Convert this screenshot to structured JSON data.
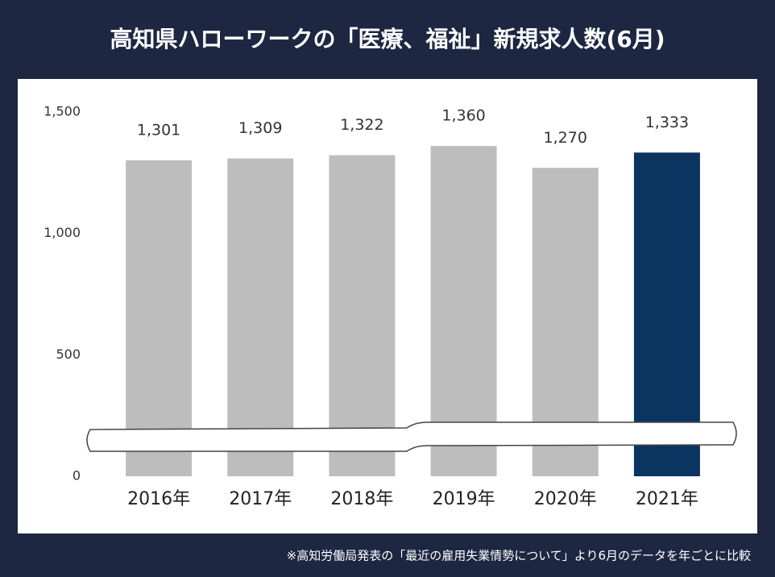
{
  "chart_data": {
    "type": "bar",
    "title": "高知県ハローワークの「医療、福祉」新規求人数(6月)",
    "categories": [
      "2016年",
      "2017年",
      "2018年",
      "2019年",
      "2020年",
      "2021年"
    ],
    "values": [
      1301,
      1309,
      1322,
      1360,
      1270,
      1333
    ],
    "value_labels": [
      "1,301",
      "1,309",
      "1,322",
      "1,360",
      "1,270",
      "1,333"
    ],
    "colors": [
      "#bdbdbd",
      "#bdbdbd",
      "#bdbdbd",
      "#bdbdbd",
      "#bdbdbd",
      "#0b3461"
    ],
    "ylim": [
      0,
      1500
    ],
    "yticks": [
      0,
      500,
      {
        "value": 1000,
        "label": "1,000"
      },
      {
        "value": 1500,
        "label": "1,500"
      }
    ],
    "footnote": "※高知労働局発表の「最近の雇用失業情勢について」より6月のデータを年ごとに比較"
  }
}
